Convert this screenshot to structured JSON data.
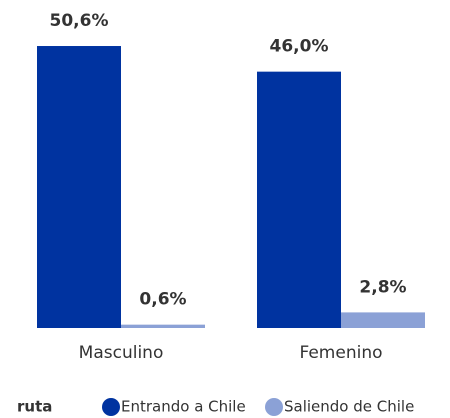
{
  "chart_data": {
    "type": "bar",
    "categories": [
      "Masculino",
      "Femenino"
    ],
    "series": [
      {
        "name": "Entrando a Chile",
        "color": "#0033a0",
        "values": [
          50.6,
          46.0
        ],
        "value_labels": [
          "50,6%",
          "46,0%"
        ]
      },
      {
        "name": "Saliendo de Chile",
        "color": "#8ba1d6",
        "values": [
          0.6,
          2.8
        ],
        "value_labels": [
          "0,6%",
          "2,8%"
        ]
      }
    ],
    "ylim": [
      0,
      55
    ],
    "legend_title": "ruta",
    "legend": "bottom-left"
  }
}
